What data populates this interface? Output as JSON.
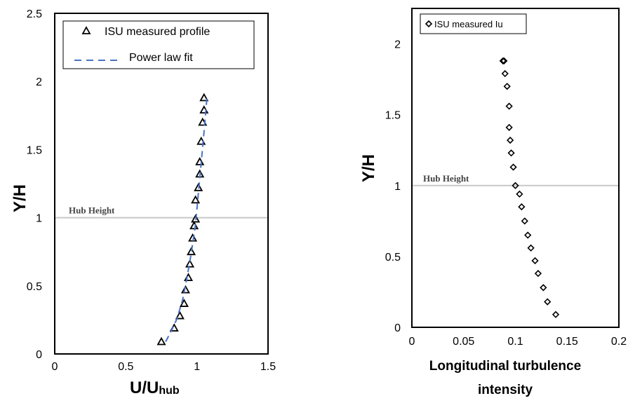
{
  "chart_data": [
    {
      "type": "scatter",
      "title": "",
      "xlabel": "U/U",
      "xlabel_sub": "hub",
      "ylabel": "Y/H",
      "xlim": [
        0,
        1.5
      ],
      "ylim": [
        0,
        2.5
      ],
      "xticks": [
        "0",
        "0.5",
        "1",
        "1.5"
      ],
      "yticks": [
        "0",
        "0.5",
        "1",
        "1.5",
        "2",
        "2.5"
      ],
      "xtick_values": [
        0,
        0.5,
        1,
        1.5
      ],
      "ytick_values": [
        0,
        0.5,
        1,
        1.5,
        2,
        2.5
      ],
      "grid": false,
      "legend_position": "top-right",
      "hub_line": {
        "y": 1.0,
        "label": "Hub Height"
      },
      "series": [
        {
          "name": "ISU measured profile",
          "marker": "triangle",
          "color": "#000000",
          "x": [
            0.75,
            0.84,
            0.88,
            0.91,
            0.92,
            0.94,
            0.95,
            0.96,
            0.97,
            0.98,
            0.99,
            0.99,
            1.01,
            1.02,
            1.02,
            1.03,
            1.04,
            1.05,
            1.05
          ],
          "y": [
            0.09,
            0.19,
            0.28,
            0.37,
            0.47,
            0.56,
            0.66,
            0.75,
            0.85,
            0.94,
            0.99,
            1.13,
            1.22,
            1.32,
            1.41,
            1.56,
            1.7,
            1.79,
            1.88
          ]
        },
        {
          "name": "Power law fit",
          "style": "dashed",
          "color": "#4a72c4",
          "x": [
            0.78,
            0.82,
            0.86,
            0.9,
            0.93,
            0.96,
            0.99,
            1.01,
            1.03,
            1.05,
            1.07
          ],
          "y": [
            0.09,
            0.17,
            0.26,
            0.4,
            0.56,
            0.74,
            0.95,
            1.18,
            1.4,
            1.63,
            1.88
          ]
        }
      ]
    },
    {
      "type": "scatter",
      "title": "",
      "xlabel": "Longitudinal turbulence intensity",
      "ylabel": "Y/H",
      "xlim": [
        0,
        0.2
      ],
      "ylim": [
        0,
        2.25
      ],
      "xticks": [
        "0",
        "0.05",
        "0.1",
        "0.15",
        "0.2"
      ],
      "yticks": [
        "0",
        "0.5",
        "1",
        "1.5",
        "2"
      ],
      "xtick_values": [
        0,
        0.05,
        0.1,
        0.15,
        0.2
      ],
      "ytick_values": [
        0,
        0.5,
        1,
        1.5,
        2
      ],
      "grid": false,
      "legend_position": "top-left",
      "hub_line": {
        "y": 1.0,
        "label": "Hub Height"
      },
      "series": [
        {
          "name": "ISU measured Iu",
          "marker": "diamond",
          "color": "#000000",
          "x": [
            0.139,
            0.131,
            0.127,
            0.122,
            0.119,
            0.115,
            0.112,
            0.109,
            0.106,
            0.104,
            0.1,
            0.098,
            0.096,
            0.095,
            0.094,
            0.094,
            0.092,
            0.09,
            0.089,
            0.088
          ],
          "y": [
            0.09,
            0.18,
            0.28,
            0.38,
            0.47,
            0.56,
            0.65,
            0.75,
            0.85,
            0.94,
            1.0,
            1.13,
            1.23,
            1.32,
            1.41,
            1.56,
            1.7,
            1.79,
            1.88,
            1.88
          ]
        }
      ]
    }
  ]
}
